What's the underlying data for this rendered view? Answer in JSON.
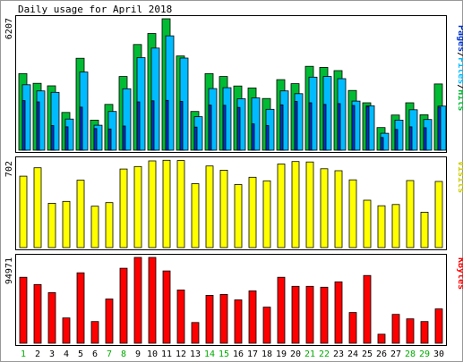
{
  "chart_data": {
    "type": "bar",
    "title": "Daily usage for April 2018",
    "categories": [
      "1",
      "2",
      "3",
      "4",
      "5",
      "6",
      "7",
      "8",
      "9",
      "10",
      "11",
      "12",
      "13",
      "14",
      "15",
      "16",
      "17",
      "18",
      "19",
      "20",
      "21",
      "22",
      "23",
      "24",
      "25",
      "26",
      "27",
      "28",
      "29",
      "30"
    ],
    "weekend_days": [
      "1",
      "7",
      "8",
      "14",
      "15",
      "21",
      "22",
      "28",
      "29"
    ],
    "panels": [
      {
        "name": "hits-files-pages",
        "ylabel_parts": [
          "Pages",
          "Files",
          "Hits"
        ],
        "ylabel_separator": "/",
        "ymax_label": "6207",
        "ylim": [
          0,
          6207
        ],
        "series": [
          {
            "name": "Hits",
            "color": "#00bb33",
            "values": [
              3620,
              3160,
              3040,
              1780,
              4340,
              1420,
              2160,
              3480,
              4990,
              5510,
              6207,
              4450,
              1830,
              3620,
              3480,
              3030,
              2940,
              2440,
              3330,
              3140,
              3960,
              3910,
              3760,
              2820,
              2240,
              1070,
              1660,
              2240,
              1670,
              3130
            ]
          },
          {
            "name": "Files",
            "color": "#00bbff",
            "values": [
              3090,
              2800,
              2730,
              1470,
              3690,
              1180,
              1830,
              2900,
              4370,
              4820,
              5400,
              4350,
              1580,
              2910,
              2950,
              2430,
              2470,
              1930,
              2800,
              2670,
              3450,
              3480,
              3380,
              2320,
              2100,
              800,
              1420,
              1910,
              1450,
              2080
            ]
          },
          {
            "name": "Pages",
            "color": "#0033cc",
            "values": [
              2340,
              2280,
              1160,
              1100,
              2030,
              1020,
              1000,
              1140,
              2280,
              2330,
              2350,
              2300,
              1090,
              2130,
              2120,
              2020,
              1240,
              1160,
              2140,
              2300,
              2240,
              2160,
              2200,
              2110,
              2060,
              600,
              980,
              1100,
              1060,
              2030
            ]
          }
        ]
      },
      {
        "name": "visits",
        "ylabel": "Visits",
        "ymax_label": "702",
        "ylim": [
          0,
          702
        ],
        "series": [
          {
            "name": "Visits",
            "color": "#ffff00",
            "values": [
              572,
              640,
              355,
              370,
              540,
              332,
              360,
              630,
              650,
              695,
              700,
              698,
              512,
              654,
              620,
              505,
              564,
              535,
              670,
              690,
              686,
              632,
              616,
              543,
              380,
              335,
              345,
              537,
              284,
              530
            ]
          }
        ]
      },
      {
        "name": "kbytes",
        "ylabel": "KBytes",
        "ymax_label": "94971",
        "ylim": [
          0,
          94971
        ],
        "series": [
          {
            "name": "KBytes",
            "color": "#ff0000",
            "values": [
              73000,
              65000,
              56000,
              28000,
              78000,
              24000,
              49000,
              83000,
              94971,
              94971,
              80000,
              59000,
              23000,
              53000,
              54000,
              48000,
              58000,
              40000,
              73000,
              63000,
              63000,
              62000,
              68000,
              34000,
              75000,
              10000,
              32000,
              27000,
              24000,
              38000
            ]
          }
        ]
      }
    ]
  },
  "colors": {
    "panel_bg": "#ffffff",
    "panel_border": "#000000",
    "outer_bg": "#ffffff",
    "weekday_label": "#000000",
    "weekend_label": "#00aa00"
  }
}
